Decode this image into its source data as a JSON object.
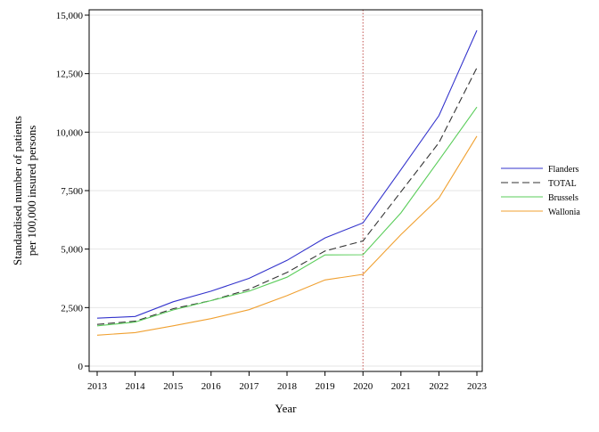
{
  "chart_data": {
    "type": "line",
    "xlabel": "Year",
    "ylabel": [
      "Standardised number of patients",
      "per 100,000 insured persons"
    ],
    "x": [
      "2013",
      "2014",
      "2015",
      "2016",
      "2017",
      "2018",
      "2019",
      "2020",
      "2021",
      "2022",
      "2023"
    ],
    "y_ticks": [
      "0",
      "2,500",
      "5,000",
      "7,500",
      "10,000",
      "12,500",
      "15,000"
    ],
    "y_tick_values": [
      0,
      2500,
      5000,
      7500,
      10000,
      12500,
      15000
    ],
    "ylim": [
      0,
      15000
    ],
    "grid": "horizontal",
    "legend_position": "right",
    "reference_line": {
      "x": "2020",
      "color": "#c0504d",
      "style": "dotted"
    },
    "series": [
      {
        "name": "Flanders",
        "color": "#3333cc",
        "dash": "solid",
        "values": [
          2050,
          2120,
          2750,
          3200,
          3750,
          4520,
          5480,
          6120,
          8400,
          10700,
          14350
        ]
      },
      {
        "name": "TOTAL",
        "color": "#333333",
        "dash": "dashed",
        "values": [
          1780,
          1920,
          2450,
          2800,
          3280,
          4000,
          4920,
          5350,
          7450,
          9550,
          12750
        ]
      },
      {
        "name": "Brussels",
        "color": "#5acd5a",
        "dash": "solid",
        "values": [
          1720,
          1880,
          2400,
          2800,
          3200,
          3800,
          4750,
          4760,
          6550,
          8800,
          11070
        ]
      },
      {
        "name": "Wallonia",
        "color": "#f0a030",
        "dash": "solid",
        "values": [
          1320,
          1430,
          1720,
          2030,
          2410,
          3010,
          3680,
          3920,
          5620,
          7180,
          9830
        ]
      }
    ]
  }
}
